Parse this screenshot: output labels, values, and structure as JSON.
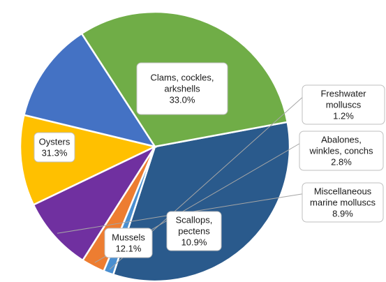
{
  "chart_data": {
    "type": "pie",
    "slices": [
      {
        "label": "Clams, cockles, arkshells",
        "value": 33.0,
        "value_label": "33.0%",
        "color": "#2a5a8c",
        "label_lines": [
          "Clams, cockles,",
          "arkshells"
        ]
      },
      {
        "label": "Freshwater molluscs",
        "value": 1.2,
        "value_label": "1.2%",
        "color": "#4a8fd0",
        "label_lines": [
          "Freshwater",
          "molluscs"
        ]
      },
      {
        "label": "Abalones, winkles, conchs",
        "value": 2.8,
        "value_label": "2.8%",
        "color": "#ed7d31",
        "label_lines": [
          "Abalones,",
          "winkles, conchs"
        ]
      },
      {
        "label": "Miscellaneous marine molluscs",
        "value": 8.9,
        "value_label": "8.9%",
        "color": "#7030a0",
        "label_lines": [
          "Miscellaneous",
          "marine molluscs"
        ]
      },
      {
        "label": "Scallops, pectens",
        "value": 10.9,
        "value_label": "10.9%",
        "color": "#ffc000",
        "label_lines": [
          "Scallops,",
          "pectens"
        ]
      },
      {
        "label": "Mussels",
        "value": 12.1,
        "value_label": "12.1%",
        "color": "#4472c4",
        "label_lines": [
          "Mussels"
        ]
      },
      {
        "label": "Oysters",
        "value": 31.3,
        "value_label": "31.3%",
        "color": "#70ad47",
        "label_lines": [
          "Oysters"
        ]
      }
    ]
  }
}
